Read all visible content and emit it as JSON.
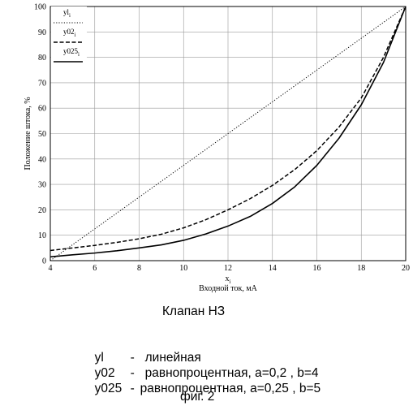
{
  "chart_data": {
    "type": "line",
    "xlabel_symbol": "x",
    "xlabel_sub": "i",
    "xlabel": "Входной ток, мА",
    "ylabel": "Положение штока, %",
    "xlim": [
      4,
      20
    ],
    "ylim": [
      0,
      100
    ],
    "x_ticks": [
      4,
      6,
      8,
      10,
      12,
      14,
      16,
      18,
      20
    ],
    "y_ticks": [
      0,
      10,
      20,
      30,
      40,
      50,
      60,
      70,
      80,
      90,
      100
    ],
    "grid": true,
    "legend_position": "top-left",
    "x": [
      4,
      5,
      6,
      7,
      8,
      9,
      10,
      11,
      12,
      13,
      14,
      15,
      16,
      17,
      18,
      19,
      20
    ],
    "series": [
      {
        "name": "yl",
        "name_sub": "i",
        "style": "dotted",
        "values": [
          0,
          6.25,
          12.5,
          18.75,
          25,
          31.25,
          37.5,
          43.75,
          50,
          56.25,
          62.5,
          68.75,
          75,
          81.25,
          87.5,
          93.75,
          100
        ]
      },
      {
        "name": "y02",
        "name_sub": "i",
        "style": "dashed",
        "values": [
          4,
          5,
          6,
          7.2,
          8.6,
          10.4,
          12.9,
          16.1,
          20,
          24.4,
          29.6,
          35.8,
          43.3,
          52.6,
          64,
          80,
          100
        ]
      },
      {
        "name": "y025",
        "name_sub": "i",
        "style": "solid",
        "values": [
          1.5,
          2.3,
          3,
          3.9,
          5,
          6.2,
          8,
          10.5,
          13.6,
          17.4,
          22.5,
          29,
          37.5,
          48.2,
          61.3,
          78,
          100
        ]
      }
    ]
  },
  "caption": {
    "title": "Клапан НЗ",
    "legend": [
      {
        "code": "yl",
        "dash": "-",
        "text": "линейная"
      },
      {
        "code": "y02",
        "dash": "-",
        "text": "равнопроцентная, a=0,2 , b=4"
      },
      {
        "code": "y025",
        "dash": "-",
        "text": "равнопроцентная, a=0,25 , b=5"
      }
    ],
    "figure": "фиг. 2"
  }
}
